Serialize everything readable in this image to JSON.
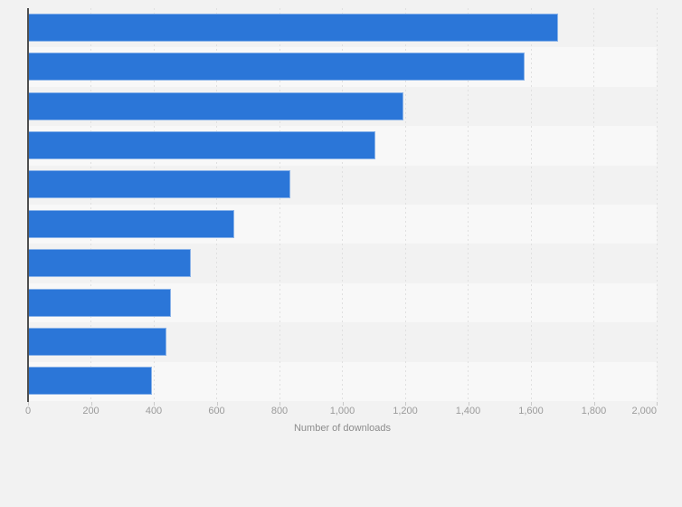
{
  "chart_data": {
    "type": "bar",
    "orientation": "horizontal",
    "xlabel": "Number of downloads",
    "xlim": [
      0,
      2000
    ],
    "xticks": [
      "0",
      "200",
      "400",
      "600",
      "800",
      "1,000",
      "1,200",
      "1,400",
      "1,600",
      "1,800",
      "2,000"
    ],
    "grid": "vertical dashed gridlines at each x tick",
    "legend_position": "none",
    "categories": [
      "",
      "",
      "",
      "",
      "",
      "",
      "",
      "",
      "",
      ""
    ],
    "values": [
      1686,
      1580,
      1195,
      1105,
      835,
      656,
      517,
      456,
      440,
      395
    ]
  },
  "colors": {
    "page_bg": "#f2f2f2",
    "row_alt": "#f8f8f8",
    "bar": "#2b76d8",
    "bar_border": "rgba(255,255,255,0.45)",
    "gridline": "#e0e0e0",
    "axis_line": "#4f4f4f",
    "tick": "#c9c9c9",
    "tick_label": "#9b9b9b",
    "axis_title": "#8c8c8c"
  }
}
